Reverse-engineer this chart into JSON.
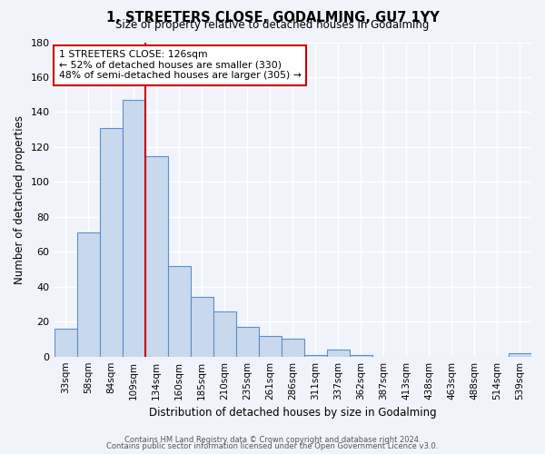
{
  "title": "1, STREETERS CLOSE, GODALMING, GU7 1YY",
  "subtitle": "Size of property relative to detached houses in Godalming",
  "xlabel": "Distribution of detached houses by size in Godalming",
  "ylabel": "Number of detached properties",
  "bin_labels": [
    "33sqm",
    "58sqm",
    "84sqm",
    "109sqm",
    "134sqm",
    "160sqm",
    "185sqm",
    "210sqm",
    "235sqm",
    "261sqm",
    "286sqm",
    "311sqm",
    "337sqm",
    "362sqm",
    "387sqm",
    "413sqm",
    "438sqm",
    "463sqm",
    "488sqm",
    "514sqm",
    "539sqm"
  ],
  "bar_values": [
    16,
    71,
    131,
    147,
    115,
    52,
    34,
    26,
    17,
    12,
    10,
    1,
    4,
    1,
    0,
    0,
    0,
    0,
    0,
    0,
    2
  ],
  "bar_color": "#c9d9ed",
  "bar_edge_color": "#5b8fc9",
  "ylim": [
    0,
    180
  ],
  "yticks": [
    0,
    20,
    40,
    60,
    80,
    100,
    120,
    140,
    160,
    180
  ],
  "vline_x": 3.5,
  "vline_color": "#cc0000",
  "annotation_title": "1 STREETERS CLOSE: 126sqm",
  "annotation_line1": "← 52% of detached houses are smaller (330)",
  "annotation_line2": "48% of semi-detached houses are larger (305) →",
  "annotation_box_color": "#cc0000",
  "footer_line1": "Contains HM Land Registry data © Crown copyright and database right 2024.",
  "footer_line2": "Contains public sector information licensed under the Open Government Licence v3.0.",
  "background_color": "#f0f4fa",
  "grid_color": "#ffffff"
}
